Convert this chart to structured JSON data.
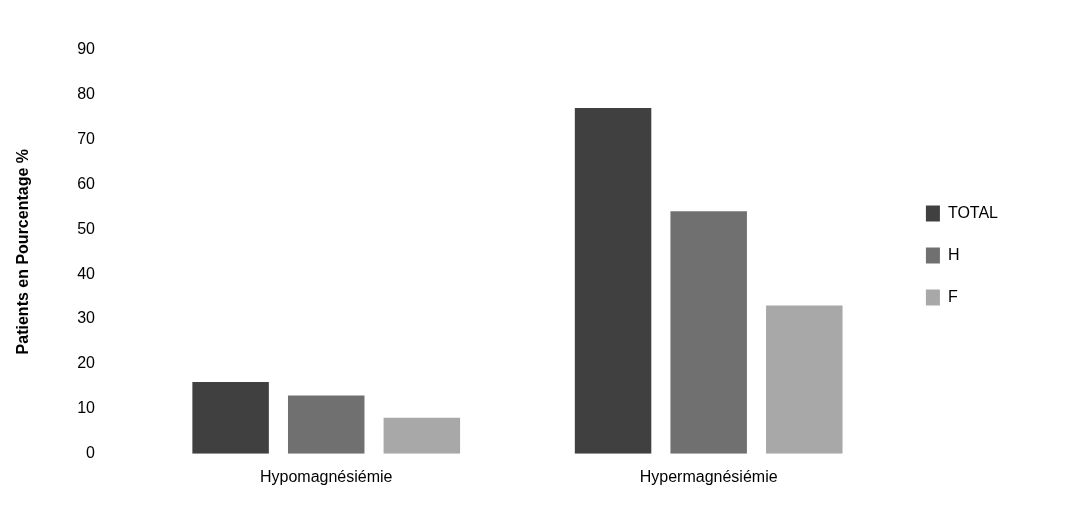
{
  "chart_data": {
    "type": "bar",
    "ylabel": "Patients en Pourcentage %",
    "categories": [
      "Hypomagnésiémie",
      "Hypermagnésiémie"
    ],
    "series": [
      {
        "name": "TOTAL",
        "color": "#404040",
        "values": [
          16,
          77
        ]
      },
      {
        "name": "H",
        "color": "#707070",
        "values": [
          13,
          54
        ]
      },
      {
        "name": "F",
        "color": "#a8a8a8",
        "values": [
          8,
          33
        ]
      }
    ],
    "ylim": [
      0,
      90
    ],
    "yticks": [
      0,
      10,
      20,
      30,
      40,
      50,
      60,
      70,
      80,
      90
    ],
    "legend": "right"
  }
}
